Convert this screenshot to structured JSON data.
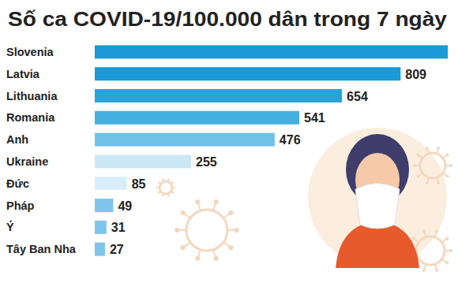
{
  "chart_data": {
    "type": "bar",
    "orientation": "horizontal",
    "title": "Số ca COVID-19/100.000 dân trong 7 ngày",
    "categories": [
      "Slovenia",
      "Latvia",
      "Lithuania",
      "Romania",
      "Anh",
      "Ukraine",
      "Đức",
      "Pháp",
      "Ý",
      "Tây Ban Nha"
    ],
    "values": [
      934,
      809,
      654,
      541,
      476,
      255,
      85,
      49,
      31,
      27
    ],
    "value_labels": [
      null,
      "809",
      "654",
      "541",
      "476",
      "255",
      "85",
      "49",
      "31",
      "27"
    ],
    "colors": [
      "#1a9ad6",
      "#1a9ad6",
      "#2aa3db",
      "#45afe0",
      "#72c2e8",
      "#cbe7f6",
      "#d9eef9",
      "#7fc4ea",
      "#7fc4ea",
      "#7fc4ea"
    ],
    "xlim": [
      0,
      940
    ],
    "grid": false,
    "data_labels": true,
    "tick_labels": "y"
  }
}
